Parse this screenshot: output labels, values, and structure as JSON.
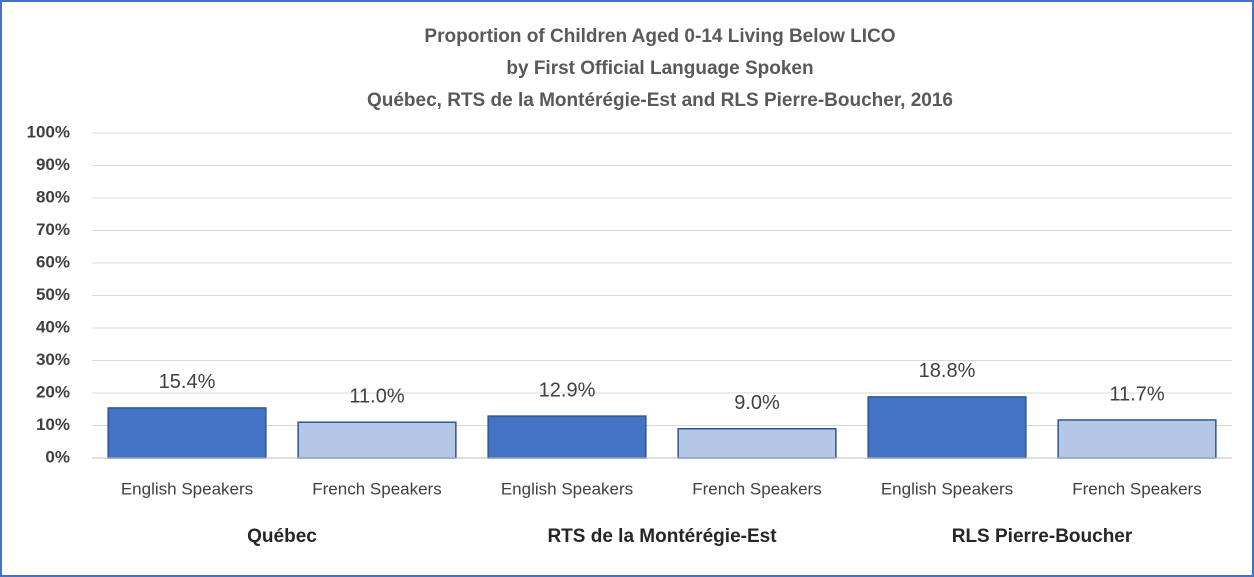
{
  "chart_data": {
    "type": "bar",
    "title": [
      "Proportion of Children Aged 0-14 Living Below LICO",
      "by First Official Language Spoken",
      "Québec, RTS de la Montérégie-Est and RLS Pierre-Boucher, 2016"
    ],
    "categories": [
      "English Speakers",
      "French Speakers",
      "English Speakers",
      "French Speakers",
      "English Speakers",
      "French Speakers"
    ],
    "groups": [
      "Québec",
      "RTS de la Montérégie-Est",
      "RLS Pierre-Boucher"
    ],
    "values": [
      15.4,
      11.0,
      12.9,
      9.0,
      18.8,
      11.7
    ],
    "value_labels": [
      "15.4%",
      "11.0%",
      "12.9%",
      "9.0%",
      "18.8%",
      "11.7%"
    ],
    "colors": [
      "#4472c4",
      "#b4c7e7",
      "#4472c4",
      "#b4c7e7",
      "#4472c4",
      "#b4c7e7"
    ],
    "ylim": [
      0,
      100
    ],
    "yticks": [
      {
        "value": 0,
        "label": "0%"
      },
      {
        "value": 10,
        "label": "10%"
      },
      {
        "value": 20,
        "label": "20%"
      },
      {
        "value": 30,
        "label": "30%"
      },
      {
        "value": 40,
        "label": "40%"
      },
      {
        "value": 50,
        "label": "50%"
      },
      {
        "value": 60,
        "label": "60%"
      },
      {
        "value": 70,
        "label": "70%"
      },
      {
        "value": 80,
        "label": "80%"
      },
      {
        "value": 90,
        "label": "90%"
      },
      {
        "value": 100,
        "label": "100%"
      }
    ],
    "grid": true
  }
}
